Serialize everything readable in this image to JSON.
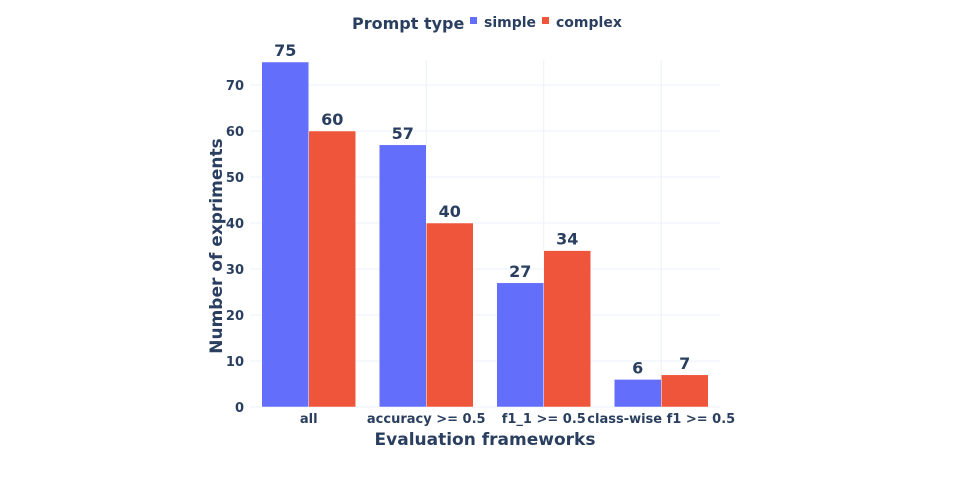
{
  "legend": {
    "title": "Prompt type",
    "items": [
      {
        "label": "simple",
        "color": "#636efa"
      },
      {
        "label": "complex",
        "color": "#ef553b"
      }
    ]
  },
  "axes": {
    "xlabel": "Evaluation frameworks",
    "ylabel": "Number of expriments",
    "yticks": [
      "0",
      "10",
      "20",
      "30",
      "40",
      "50",
      "60",
      "70"
    ]
  },
  "chart_data": {
    "type": "bar",
    "title": "",
    "xlabel": "Evaluation frameworks",
    "ylabel": "Number of expriments",
    "categories": [
      "all",
      "accuracy >= 0.5",
      "f1_1 >= 0.5",
      "class-wise f1 >= 0.5"
    ],
    "series": [
      {
        "name": "simple",
        "color": "#636efa",
        "values": [
          75,
          57,
          27,
          6
        ]
      },
      {
        "name": "complex",
        "color": "#ef553b",
        "values": [
          60,
          40,
          34,
          7
        ]
      }
    ],
    "ylim": [
      0,
      78
    ],
    "yticks": [
      0,
      10,
      20,
      30,
      40,
      50,
      60,
      70
    ],
    "grid": true,
    "legend_position": "top",
    "legend_title": "Prompt type",
    "barmode": "group",
    "data_labels": true
  }
}
